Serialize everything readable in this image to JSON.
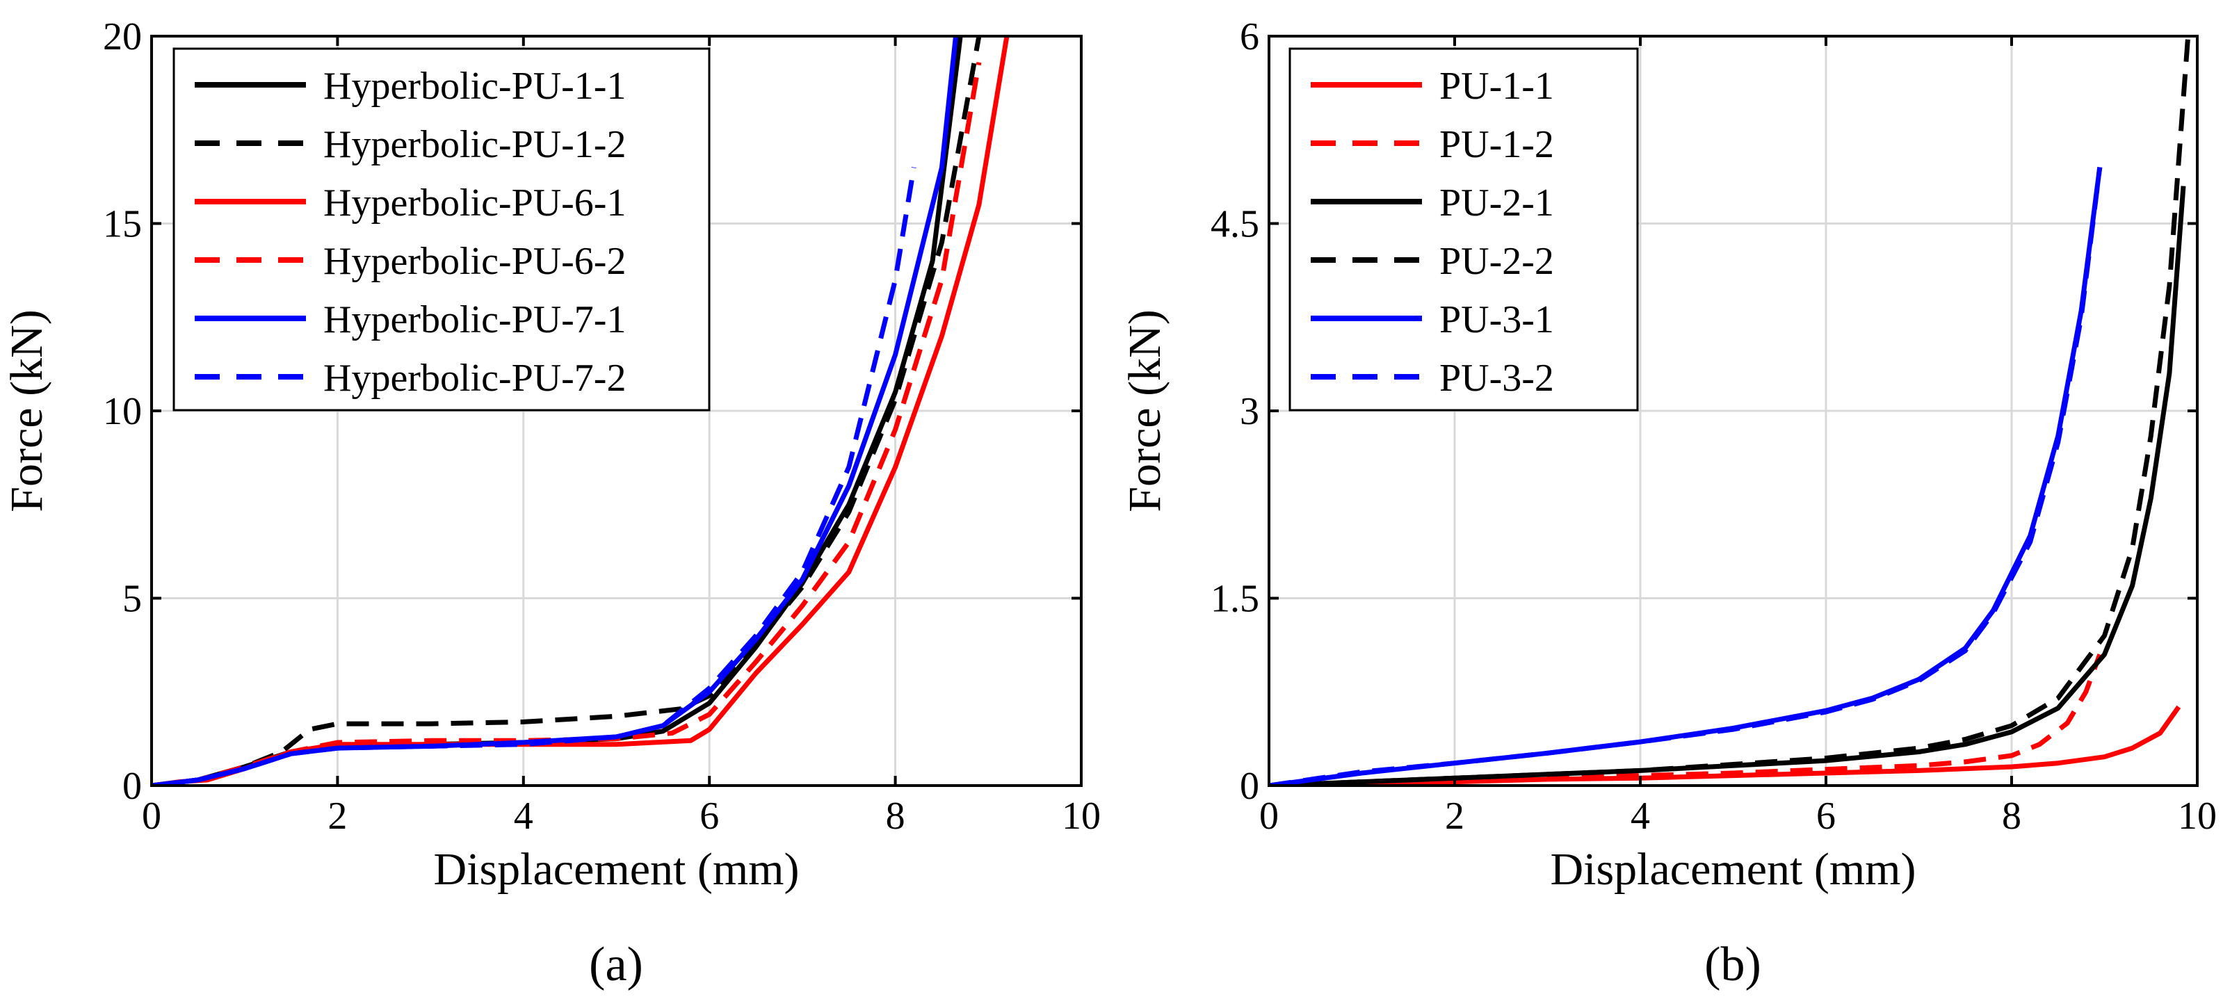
{
  "chart_data": [
    {
      "id": "a",
      "type": "line",
      "caption": "(a)",
      "xlabel": "Displacement (mm)",
      "ylabel": "Force (kN)",
      "xlim": [
        0,
        10
      ],
      "ylim": [
        0,
        20
      ],
      "xticks": [
        0,
        2,
        4,
        6,
        8,
        10
      ],
      "xtick_labels": [
        "0",
        "2",
        "4",
        "6",
        "8",
        "10"
      ],
      "yticks": [
        0,
        5,
        10,
        15,
        20
      ],
      "ytick_labels": [
        "0",
        "5",
        "10",
        "15",
        "20"
      ],
      "grid": true,
      "legend_position": "top-left",
      "series": [
        {
          "name": "Hyperbolic-PU-1-1",
          "color": "#000000",
          "dash": "solid",
          "x": [
            0,
            0.5,
            1.0,
            1.5,
            2.0,
            3.0,
            4.0,
            5.0,
            5.5,
            6.0,
            6.5,
            7.0,
            7.5,
            8.0,
            8.4,
            8.7
          ],
          "y": [
            0,
            0.15,
            0.5,
            0.9,
            1.05,
            1.1,
            1.15,
            1.25,
            1.45,
            2.2,
            3.7,
            5.4,
            7.5,
            10.5,
            14.0,
            20.0
          ]
        },
        {
          "name": "Hyperbolic-PU-1-2",
          "color": "#000000",
          "dash": "dashed",
          "x": [
            0,
            0.5,
            1.0,
            1.4,
            1.7,
            2.0,
            3.0,
            4.0,
            5.0,
            5.7,
            6.0,
            6.5,
            7.0,
            7.5,
            8.0,
            8.5,
            8.9
          ],
          "y": [
            0,
            0.15,
            0.5,
            0.9,
            1.5,
            1.65,
            1.65,
            1.7,
            1.85,
            2.05,
            2.4,
            3.8,
            5.3,
            7.3,
            10.3,
            14.5,
            20.0
          ]
        },
        {
          "name": "Hyperbolic-PU-6-1",
          "color": "#ff0000",
          "dash": "solid",
          "x": [
            0,
            0.3,
            0.6,
            1.0,
            1.5,
            2.0,
            3.0,
            4.0,
            5.0,
            5.8,
            6.0,
            6.5,
            7.0,
            7.5,
            8.0,
            8.5,
            8.9,
            9.2
          ],
          "y": [
            0,
            0.1,
            0.15,
            0.45,
            0.9,
            1.1,
            1.1,
            1.1,
            1.1,
            1.2,
            1.5,
            3.0,
            4.3,
            5.7,
            8.5,
            12.0,
            15.5,
            20.0
          ]
        },
        {
          "name": "Hyperbolic-PU-6-2",
          "color": "#ff0000",
          "dash": "dashed",
          "x": [
            0,
            0.5,
            1.0,
            1.5,
            2.0,
            3.0,
            4.0,
            5.0,
            5.6,
            6.0,
            6.5,
            7.0,
            7.5,
            8.0,
            8.5,
            8.9
          ],
          "y": [
            0,
            0.15,
            0.5,
            0.9,
            1.15,
            1.2,
            1.2,
            1.25,
            1.4,
            1.9,
            3.3,
            4.8,
            6.5,
            9.5,
            13.5,
            19.3
          ]
        },
        {
          "name": "Hyperbolic-PU-7-1",
          "color": "#0000ff",
          "dash": "solid",
          "x": [
            0,
            0.5,
            1.0,
            1.5,
            2.0,
            3.0,
            4.0,
            5.0,
            5.5,
            6.0,
            6.5,
            7.0,
            7.5,
            8.0,
            8.5,
            8.65
          ],
          "y": [
            0,
            0.15,
            0.45,
            0.85,
            1.0,
            1.05,
            1.15,
            1.3,
            1.6,
            2.5,
            3.9,
            5.5,
            8.0,
            11.5,
            16.5,
            20.0
          ]
        },
        {
          "name": "Hyperbolic-PU-7-2",
          "color": "#0000ff",
          "dash": "dashed",
          "x": [
            0,
            0.5,
            1.0,
            1.5,
            2.0,
            3.0,
            4.0,
            5.0,
            5.5,
            6.0,
            6.5,
            7.0,
            7.5,
            8.0,
            8.2
          ],
          "y": [
            0,
            0.15,
            0.45,
            0.85,
            1.0,
            1.05,
            1.1,
            1.3,
            1.6,
            2.6,
            4.0,
            5.7,
            8.5,
            13.5,
            16.5
          ]
        }
      ]
    },
    {
      "id": "b",
      "type": "line",
      "caption": "(b)",
      "xlabel": "Displacement (mm)",
      "ylabel": "Force (kN)",
      "xlim": [
        0,
        10
      ],
      "ylim": [
        0,
        6
      ],
      "xticks": [
        0,
        2,
        4,
        6,
        8,
        10
      ],
      "xtick_labels": [
        "0",
        "2",
        "4",
        "6",
        "8",
        "10"
      ],
      "yticks": [
        0,
        1.5,
        3,
        4.5,
        6
      ],
      "ytick_labels": [
        "0",
        "1.5",
        "3",
        "4.5",
        "6"
      ],
      "grid": true,
      "legend_position": "top-left",
      "series": [
        {
          "name": "PU-1-1",
          "color": "#ff0000",
          "dash": "solid",
          "x": [
            0,
            1,
            2,
            3,
            4,
            5,
            6,
            7,
            8,
            8.5,
            9.0,
            9.3,
            9.6,
            9.8
          ],
          "y": [
            0,
            0.01,
            0.03,
            0.05,
            0.06,
            0.08,
            0.1,
            0.12,
            0.15,
            0.18,
            0.23,
            0.3,
            0.42,
            0.63
          ]
        },
        {
          "name": "PU-1-2",
          "color": "#ff0000",
          "dash": "dashed",
          "x": [
            0,
            1,
            2,
            3,
            4,
            5,
            6,
            7,
            7.5,
            8.0,
            8.3,
            8.6,
            8.8,
            8.95
          ],
          "y": [
            0,
            0.02,
            0.04,
            0.06,
            0.08,
            0.1,
            0.13,
            0.16,
            0.19,
            0.24,
            0.33,
            0.5,
            0.75,
            1.05
          ]
        },
        {
          "name": "PU-2-1",
          "color": "#000000",
          "dash": "solid",
          "x": [
            0,
            1,
            2,
            3,
            4,
            5,
            6,
            7,
            7.5,
            8.0,
            8.5,
            9.0,
            9.3,
            9.5,
            9.7,
            9.85
          ],
          "y": [
            0,
            0.03,
            0.06,
            0.09,
            0.12,
            0.16,
            0.2,
            0.27,
            0.33,
            0.43,
            0.62,
            1.05,
            1.6,
            2.3,
            3.3,
            4.8
          ]
        },
        {
          "name": "PU-2-2",
          "color": "#000000",
          "dash": "dashed",
          "x": [
            0,
            1,
            2,
            3,
            4,
            5,
            6,
            7,
            7.5,
            8.0,
            8.5,
            9.0,
            9.3,
            9.5,
            9.7,
            9.9
          ],
          "y": [
            0,
            0.03,
            0.06,
            0.09,
            0.12,
            0.17,
            0.22,
            0.3,
            0.37,
            0.48,
            0.7,
            1.2,
            1.9,
            2.8,
            4.0,
            6.0
          ]
        },
        {
          "name": "PU-3-1",
          "color": "#0000ff",
          "dash": "solid",
          "x": [
            0,
            1,
            2,
            3,
            4,
            5,
            6,
            6.5,
            7.0,
            7.5,
            7.8,
            8.2,
            8.5,
            8.75,
            8.95
          ],
          "y": [
            0,
            0.1,
            0.18,
            0.26,
            0.35,
            0.46,
            0.6,
            0.7,
            0.85,
            1.1,
            1.4,
            2.0,
            2.8,
            3.8,
            4.95
          ]
        },
        {
          "name": "PU-3-2",
          "color": "#0000ff",
          "dash": "dashed",
          "x": [
            0,
            1,
            2,
            3,
            4,
            5,
            6,
            6.5,
            7.0,
            7.5,
            7.8,
            8.2,
            8.5,
            8.75,
            8.95
          ],
          "y": [
            0,
            0.11,
            0.18,
            0.26,
            0.35,
            0.45,
            0.59,
            0.69,
            0.84,
            1.08,
            1.38,
            1.95,
            2.75,
            3.75,
            4.95
          ]
        }
      ]
    }
  ]
}
